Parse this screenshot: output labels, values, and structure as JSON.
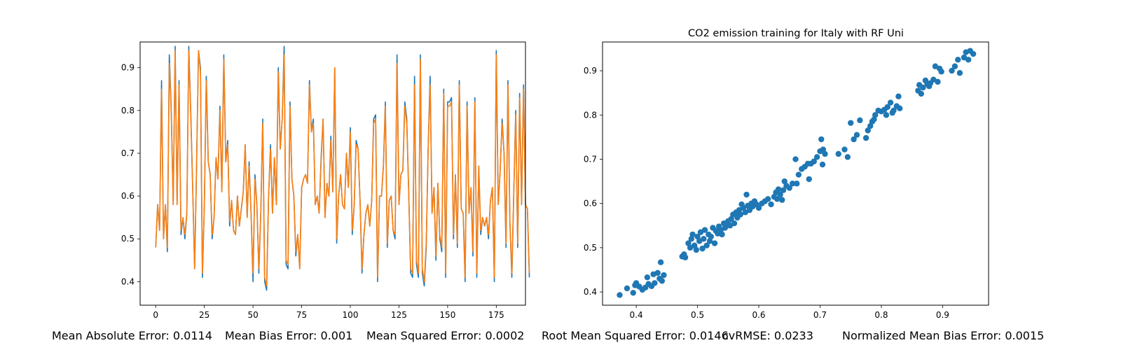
{
  "chart_data": [
    {
      "type": "line",
      "title": "",
      "xlabel": "",
      "ylabel": "",
      "xlim": [
        -8,
        190
      ],
      "ylim": [
        0.345,
        0.96
      ],
      "xticks": [
        0,
        25,
        50,
        75,
        100,
        125,
        150,
        175
      ],
      "yticks": [
        0.4,
        0.5,
        0.6,
        0.7,
        0.8,
        0.9
      ],
      "grid": false,
      "colors": [
        "#1f77b4",
        "#ff7f0e"
      ],
      "series": [
        {
          "values": [
            0.48,
            0.58,
            0.52,
            0.87,
            0.5,
            0.58,
            0.47,
            0.93,
            0.8,
            0.58,
            0.95,
            0.58,
            0.87,
            0.51,
            0.55,
            0.5,
            0.56,
            0.95,
            0.8,
            0.62,
            0.43,
            0.67,
            0.94,
            0.9,
            0.41,
            0.58,
            0.88,
            0.68,
            0.65,
            0.5,
            0.55,
            0.69,
            0.64,
            0.81,
            0.61,
            0.93,
            0.68,
            0.73,
            0.53,
            0.59,
            0.52,
            0.51,
            0.6,
            0.53,
            0.57,
            0.61,
            0.72,
            0.55,
            0.68,
            0.56,
            0.4,
            0.65,
            0.58,
            0.42,
            0.56,
            0.78,
            0.4,
            0.38,
            0.6,
            0.72,
            0.56,
            0.69,
            0.58,
            0.9,
            0.71,
            0.78,
            0.95,
            0.44,
            0.43,
            0.82,
            0.64,
            0.6,
            0.46,
            0.51,
            0.43,
            0.62,
            0.64,
            0.65,
            0.63,
            0.87,
            0.75,
            0.78,
            0.58,
            0.6,
            0.56,
            0.69,
            0.78,
            0.55,
            0.63,
            0.6,
            0.74,
            0.61,
            0.9,
            0.49,
            0.6,
            0.65,
            0.58,
            0.57,
            0.7,
            0.62,
            0.76,
            0.51,
            0.58,
            0.73,
            0.71,
            0.59,
            0.42,
            0.51,
            0.56,
            0.58,
            0.53,
            0.59,
            0.78,
            0.79,
            0.4,
            0.6,
            0.6,
            0.67,
            0.82,
            0.48,
            0.59,
            0.6,
            0.52,
            0.5,
            0.93,
            0.58,
            0.65,
            0.66,
            0.82,
            0.78,
            0.61,
            0.42,
            0.41,
            0.88,
            0.44,
            0.41,
            0.93,
            0.42,
            0.39,
            0.48,
            0.71,
            0.88,
            0.56,
            0.62,
            0.45,
            0.63,
            0.5,
            0.47,
            0.85,
            0.41,
            0.82,
            0.82,
            0.83,
            0.5,
            0.65,
            0.48,
            0.87,
            0.57,
            0.56,
            0.4,
            0.82,
            0.56,
            0.62,
            0.46,
            0.83,
            0.41,
            0.67,
            0.51,
            0.55,
            0.53,
            0.55,
            0.5,
            0.59,
            0.62,
            0.4,
            0.94,
            0.58,
            0.66,
            0.78,
            0.7,
            0.48,
            0.87,
            0.54,
            0.41,
            0.61,
            0.8,
            0.48,
            0.84,
            0.58,
            0.86,
            0.58,
            0.57,
            0.41
          ]
        },
        {
          "values": [
            0.48,
            0.58,
            0.52,
            0.85,
            0.5,
            0.58,
            0.48,
            0.91,
            0.79,
            0.58,
            0.94,
            0.58,
            0.86,
            0.52,
            0.55,
            0.51,
            0.56,
            0.94,
            0.79,
            0.62,
            0.43,
            0.67,
            0.94,
            0.89,
            0.42,
            0.58,
            0.87,
            0.68,
            0.65,
            0.51,
            0.55,
            0.69,
            0.64,
            0.8,
            0.61,
            0.92,
            0.68,
            0.72,
            0.54,
            0.59,
            0.52,
            0.51,
            0.6,
            0.53,
            0.57,
            0.61,
            0.72,
            0.55,
            0.67,
            0.56,
            0.42,
            0.64,
            0.58,
            0.43,
            0.56,
            0.77,
            0.41,
            0.39,
            0.6,
            0.71,
            0.56,
            0.69,
            0.58,
            0.89,
            0.71,
            0.78,
            0.93,
            0.45,
            0.44,
            0.81,
            0.64,
            0.6,
            0.47,
            0.51,
            0.43,
            0.62,
            0.64,
            0.65,
            0.63,
            0.86,
            0.75,
            0.77,
            0.58,
            0.6,
            0.56,
            0.68,
            0.78,
            0.55,
            0.63,
            0.6,
            0.73,
            0.61,
            0.9,
            0.5,
            0.6,
            0.65,
            0.58,
            0.57,
            0.7,
            0.62,
            0.75,
            0.52,
            0.58,
            0.72,
            0.71,
            0.59,
            0.43,
            0.51,
            0.56,
            0.58,
            0.53,
            0.59,
            0.77,
            0.78,
            0.41,
            0.6,
            0.6,
            0.67,
            0.81,
            0.49,
            0.59,
            0.6,
            0.52,
            0.51,
            0.91,
            0.58,
            0.65,
            0.66,
            0.81,
            0.77,
            0.61,
            0.43,
            0.42,
            0.86,
            0.45,
            0.42,
            0.92,
            0.43,
            0.4,
            0.49,
            0.71,
            0.86,
            0.56,
            0.62,
            0.46,
            0.63,
            0.51,
            0.48,
            0.84,
            0.42,
            0.81,
            0.81,
            0.82,
            0.51,
            0.65,
            0.49,
            0.86,
            0.57,
            0.56,
            0.41,
            0.81,
            0.56,
            0.62,
            0.47,
            0.82,
            0.42,
            0.67,
            0.52,
            0.55,
            0.53,
            0.55,
            0.51,
            0.59,
            0.62,
            0.41,
            0.93,
            0.58,
            0.66,
            0.77,
            0.7,
            0.49,
            0.86,
            0.54,
            0.42,
            0.61,
            0.79,
            0.49,
            0.83,
            0.58,
            0.85,
            0.58,
            0.57,
            0.42
          ]
        }
      ]
    },
    {
      "type": "scatter",
      "title": "CO2 emission training for Italy with RF Uni",
      "xlabel": "",
      "ylabel": "",
      "xlim": [
        0.345,
        0.975
      ],
      "ylim": [
        0.37,
        0.965
      ],
      "xticks": [
        0.4,
        0.5,
        0.6,
        0.7,
        0.8,
        0.9
      ],
      "yticks": [
        0.4,
        0.5,
        0.6,
        0.7,
        0.8,
        0.9
      ],
      "grid": false,
      "colors": [
        "#1f77b4"
      ],
      "points": [
        [
          0.373,
          0.393
        ],
        [
          0.385,
          0.408
        ],
        [
          0.395,
          0.398
        ],
        [
          0.398,
          0.415
        ],
        [
          0.4,
          0.42
        ],
        [
          0.405,
          0.412
        ],
        [
          0.41,
          0.405
        ],
        [
          0.415,
          0.41
        ],
        [
          0.418,
          0.433
        ],
        [
          0.42,
          0.418
        ],
        [
          0.425,
          0.413
        ],
        [
          0.428,
          0.44
        ],
        [
          0.43,
          0.42
        ],
        [
          0.435,
          0.443
        ],
        [
          0.438,
          0.43
        ],
        [
          0.44,
          0.467
        ],
        [
          0.442,
          0.425
        ],
        [
          0.445,
          0.438
        ],
        [
          0.475,
          0.48
        ],
        [
          0.478,
          0.485
        ],
        [
          0.48,
          0.478
        ],
        [
          0.485,
          0.51
        ],
        [
          0.488,
          0.5
        ],
        [
          0.49,
          0.52
        ],
        [
          0.492,
          0.53
        ],
        [
          0.495,
          0.505
        ],
        [
          0.498,
          0.495
        ],
        [
          0.5,
          0.525
        ],
        [
          0.503,
          0.515
        ],
        [
          0.505,
          0.535
        ],
        [
          0.508,
          0.498
        ],
        [
          0.51,
          0.52
        ],
        [
          0.512,
          0.54
        ],
        [
          0.515,
          0.505
        ],
        [
          0.518,
          0.53
        ],
        [
          0.52,
          0.515
        ],
        [
          0.522,
          0.525
        ],
        [
          0.525,
          0.545
        ],
        [
          0.528,
          0.51
        ],
        [
          0.53,
          0.538
        ],
        [
          0.533,
          0.532
        ],
        [
          0.535,
          0.548
        ],
        [
          0.538,
          0.54
        ],
        [
          0.54,
          0.53
        ],
        [
          0.543,
          0.555
        ],
        [
          0.545,
          0.545
        ],
        [
          0.548,
          0.555
        ],
        [
          0.55,
          0.56
        ],
        [
          0.553,
          0.55
        ],
        [
          0.555,
          0.565
        ],
        [
          0.558,
          0.575
        ],
        [
          0.56,
          0.555
        ],
        [
          0.563,
          0.58
        ],
        [
          0.565,
          0.568
        ],
        [
          0.568,
          0.585
        ],
        [
          0.57,
          0.575
        ],
        [
          0.572,
          0.598
        ],
        [
          0.575,
          0.59
        ],
        [
          0.578,
          0.58
        ],
        [
          0.58,
          0.62
        ],
        [
          0.582,
          0.595
        ],
        [
          0.585,
          0.585
        ],
        [
          0.588,
          0.6
        ],
        [
          0.59,
          0.593
        ],
        [
          0.593,
          0.605
        ],
        [
          0.596,
          0.598
        ],
        [
          0.6,
          0.59
        ],
        [
          0.605,
          0.6
        ],
        [
          0.61,
          0.605
        ],
        [
          0.615,
          0.61
        ],
        [
          0.62,
          0.598
        ],
        [
          0.625,
          0.615
        ],
        [
          0.628,
          0.625
        ],
        [
          0.63,
          0.61
        ],
        [
          0.632,
          0.632
        ],
        [
          0.635,
          0.62
        ],
        [
          0.638,
          0.608
        ],
        [
          0.64,
          0.63
        ],
        [
          0.642,
          0.65
        ],
        [
          0.645,
          0.64
        ],
        [
          0.65,
          0.635
        ],
        [
          0.655,
          0.645
        ],
        [
          0.66,
          0.7
        ],
        [
          0.662,
          0.645
        ],
        [
          0.665,
          0.665
        ],
        [
          0.67,
          0.678
        ],
        [
          0.675,
          0.683
        ],
        [
          0.68,
          0.69
        ],
        [
          0.682,
          0.655
        ],
        [
          0.685,
          0.69
        ],
        [
          0.69,
          0.695
        ],
        [
          0.695,
          0.705
        ],
        [
          0.7,
          0.718
        ],
        [
          0.702,
          0.745
        ],
        [
          0.705,
          0.722
        ],
        [
          0.708,
          0.712
        ],
        [
          0.704,
          0.688
        ],
        [
          0.73,
          0.712
        ],
        [
          0.74,
          0.722
        ],
        [
          0.745,
          0.705
        ],
        [
          0.75,
          0.782
        ],
        [
          0.755,
          0.745
        ],
        [
          0.76,
          0.755
        ],
        [
          0.765,
          0.788
        ],
        [
          0.775,
          0.748
        ],
        [
          0.778,
          0.765
        ],
        [
          0.782,
          0.775
        ],
        [
          0.785,
          0.785
        ],
        [
          0.788,
          0.79
        ],
        [
          0.79,
          0.8
        ],
        [
          0.795,
          0.81
        ],
        [
          0.8,
          0.808
        ],
        [
          0.805,
          0.812
        ],
        [
          0.808,
          0.8
        ],
        [
          0.81,
          0.818
        ],
        [
          0.815,
          0.828
        ],
        [
          0.818,
          0.805
        ],
        [
          0.82,
          0.81
        ],
        [
          0.825,
          0.82
        ],
        [
          0.828,
          0.842
        ],
        [
          0.83,
          0.815
        ],
        [
          0.86,
          0.855
        ],
        [
          0.862,
          0.868
        ],
        [
          0.865,
          0.848
        ],
        [
          0.868,
          0.862
        ],
        [
          0.872,
          0.878
        ],
        [
          0.875,
          0.87
        ],
        [
          0.878,
          0.865
        ],
        [
          0.88,
          0.872
        ],
        [
          0.885,
          0.88
        ],
        [
          0.888,
          0.91
        ],
        [
          0.892,
          0.875
        ],
        [
          0.895,
          0.905
        ],
        [
          0.898,
          0.898
        ],
        [
          0.915,
          0.9
        ],
        [
          0.92,
          0.91
        ],
        [
          0.925,
          0.925
        ],
        [
          0.928,
          0.895
        ],
        [
          0.935,
          0.93
        ],
        [
          0.938,
          0.942
        ],
        [
          0.942,
          0.925
        ],
        [
          0.945,
          0.945
        ],
        [
          0.95,
          0.938
        ]
      ]
    }
  ],
  "metrics": {
    "mae": "Mean Absolute Error: 0.0114",
    "mbe": "Mean Bias Error: 0.001",
    "mse": "Mean Squared Error: 0.0002",
    "rmse": "Root Mean Squared Error: 0.0146",
    "cvrmse": "cvRMSE: 0.0233",
    "nmbe": "Normalized Mean Bias Error: 0.0015"
  }
}
